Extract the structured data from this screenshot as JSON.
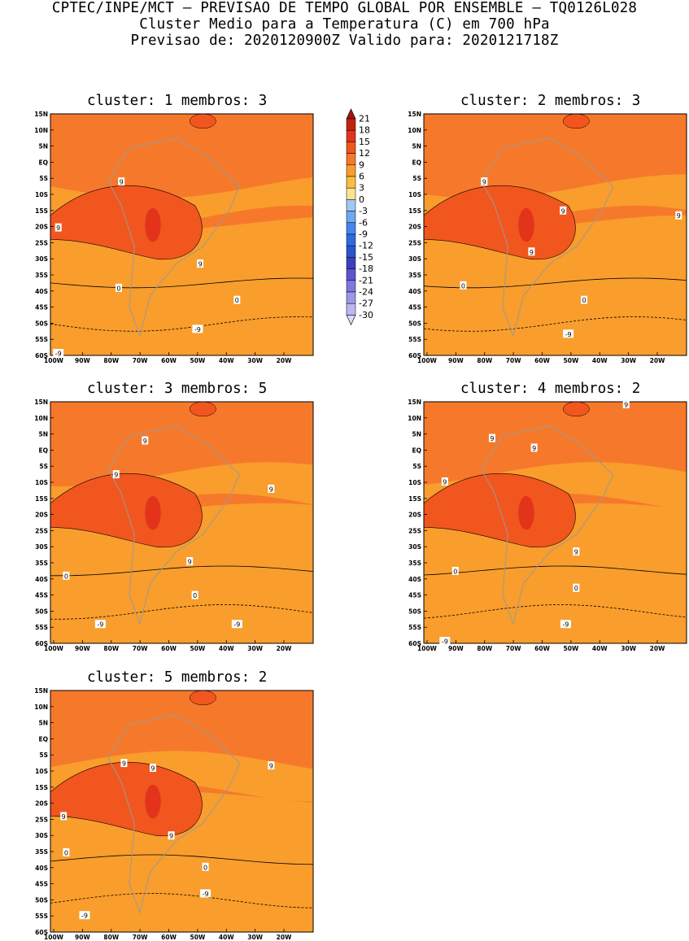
{
  "header": {
    "line1": "CPTEC/INPE/MCT — PREVISAO DE TEMPO GLOBAL POR ENSEMBLE — TQ0126L028",
    "line2": "Cluster Medio para a Temperatura (C) em 700 hPa",
    "line3": "Previsao de: 2020120900Z    Valido para: 2020121718Z"
  },
  "axes": {
    "lat_labels": [
      "15N",
      "10N",
      "5N",
      "EQ",
      "5S",
      "10S",
      "15S",
      "20S",
      "25S",
      "30S",
      "35S",
      "40S",
      "45S",
      "50S",
      "55S",
      "60S"
    ],
    "lon_labels": [
      "100W",
      "90W",
      "80W",
      "70W",
      "60W",
      "50W",
      "40W",
      "30W",
      "20W"
    ]
  },
  "colorbar": {
    "levels": [
      "21",
      "18",
      "15",
      "12",
      "9",
      "6",
      "3",
      "0",
      "-3",
      "-6",
      "-9",
      "-12",
      "-15",
      "-18",
      "-21",
      "-24",
      "-27",
      "-30"
    ],
    "colors": [
      "#9f1710",
      "#c4230f",
      "#e2341a",
      "#f1561e",
      "#f6792b",
      "#f99d2c",
      "#fbbd41",
      "#fde38e",
      "#a0c7f6",
      "#6ea8ef",
      "#4486ec",
      "#2f6ae0",
      "#2a55cf",
      "#3a3fc0",
      "#5d55cf",
      "#7f78de",
      "#9c97e8",
      "#bbb7f0",
      "#dcdaf8"
    ]
  },
  "panels": [
    {
      "title": "cluster: 1   membros: 3",
      "contour_labels": [
        "9",
        "9",
        "9",
        "0",
        "0",
        "-9",
        "-9"
      ]
    },
    {
      "title": "cluster: 2   membros: 3",
      "contour_labels": [
        "9",
        "9",
        "9",
        "9",
        "0",
        "0",
        "-9"
      ]
    },
    {
      "title": "cluster: 3   membros: 5",
      "contour_labels": [
        "9",
        "9",
        "9",
        "9",
        "0",
        "0",
        "-9",
        "-9"
      ]
    },
    {
      "title": "cluster: 4   membros: 2",
      "contour_labels": [
        "9",
        "9",
        "9",
        "9",
        "9",
        "0",
        "0",
        "-9",
        "-9"
      ]
    },
    {
      "title": "cluster: 5   membros: 2",
      "contour_labels": [
        "9",
        "9",
        "9",
        "9",
        "9",
        "0",
        "0",
        "-9",
        "-9"
      ]
    }
  ]
}
